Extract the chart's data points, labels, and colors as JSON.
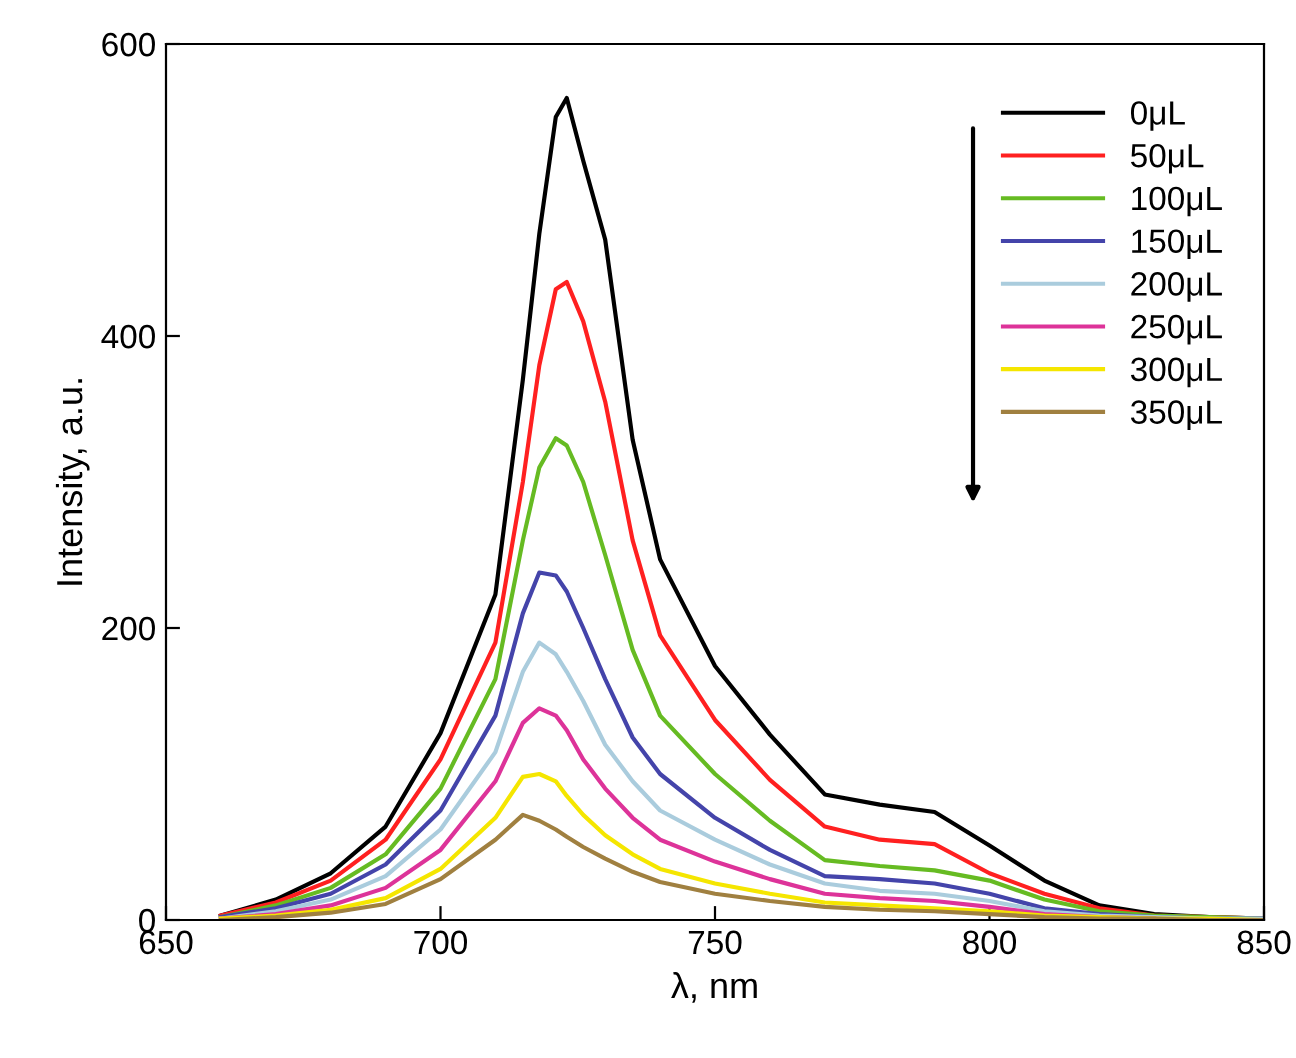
{
  "chart_data": {
    "type": "line",
    "xlabel": "λ, nm",
    "ylabel": "Intensity, a.u.",
    "x": [
      660,
      670,
      680,
      690,
      700,
      710,
      715,
      718,
      721,
      723,
      726,
      730,
      735,
      740,
      750,
      760,
      770,
      780,
      790,
      800,
      810,
      820,
      830,
      840,
      850
    ],
    "xlim": [
      650,
      850
    ],
    "xticks": [
      650,
      700,
      750,
      800,
      850
    ],
    "ylim": [
      0,
      600
    ],
    "yticks": [
      0,
      200,
      400,
      600
    ],
    "grid": false,
    "legend": "top right",
    "marker": "none",
    "line_style": "solid",
    "series": [
      {
        "name": "0μL",
        "color": "#000000",
        "values": [
          3,
          14,
          32,
          64,
          128,
          223,
          370,
          470,
          550,
          563,
          520,
          466,
          329,
          247,
          174,
          127,
          86,
          79,
          74,
          51,
          27,
          10,
          4,
          2,
          1
        ]
      },
      {
        "name": "50μL",
        "color": "#ff2020",
        "values": [
          3,
          12,
          27,
          55,
          110,
          190,
          300,
          380,
          432,
          437,
          410,
          355,
          260,
          195,
          137,
          96,
          64,
          55,
          52,
          32,
          18,
          8,
          3,
          2,
          1
        ]
      },
      {
        "name": "100μL",
        "color": "#66bb22",
        "values": [
          2,
          10,
          22,
          45,
          90,
          165,
          260,
          310,
          330,
          325,
          300,
          250,
          185,
          140,
          100,
          68,
          41,
          37,
          34,
          27,
          14,
          6,
          3,
          2,
          1
        ]
      },
      {
        "name": "150μL",
        "color": "#4444aa",
        "values": [
          2,
          8,
          18,
          38,
          75,
          140,
          210,
          238,
          236,
          225,
          200,
          165,
          125,
          100,
          70,
          48,
          30,
          28,
          25,
          18,
          8,
          4,
          2,
          1,
          1
        ]
      },
      {
        "name": "200μL",
        "color": "#aaccdd",
        "values": [
          1,
          6,
          14,
          30,
          62,
          115,
          170,
          190,
          182,
          170,
          150,
          120,
          95,
          75,
          55,
          38,
          25,
          20,
          18,
          13,
          6,
          3,
          2,
          1,
          1
        ]
      },
      {
        "name": "250μL",
        "color": "#dd3399",
        "values": [
          1,
          4,
          10,
          22,
          48,
          95,
          135,
          145,
          140,
          130,
          110,
          90,
          70,
          55,
          40,
          28,
          18,
          15,
          13,
          9,
          4,
          2,
          1,
          null,
          null
        ]
      },
      {
        "name": "300μL",
        "color": "#f5e600",
        "values": [
          1,
          3,
          7,
          15,
          35,
          70,
          98,
          100,
          95,
          85,
          72,
          58,
          45,
          35,
          25,
          18,
          12,
          10,
          8,
          6,
          3,
          2,
          1,
          1,
          0
        ]
      },
      {
        "name": "350μL",
        "color": "#a08040",
        "values": [
          0,
          2,
          5,
          11,
          28,
          55,
          72,
          68,
          62,
          57,
          50,
          42,
          33,
          26,
          18,
          13,
          9,
          7,
          6,
          4,
          2,
          1,
          1,
          0,
          0
        ]
      }
    ]
  }
}
